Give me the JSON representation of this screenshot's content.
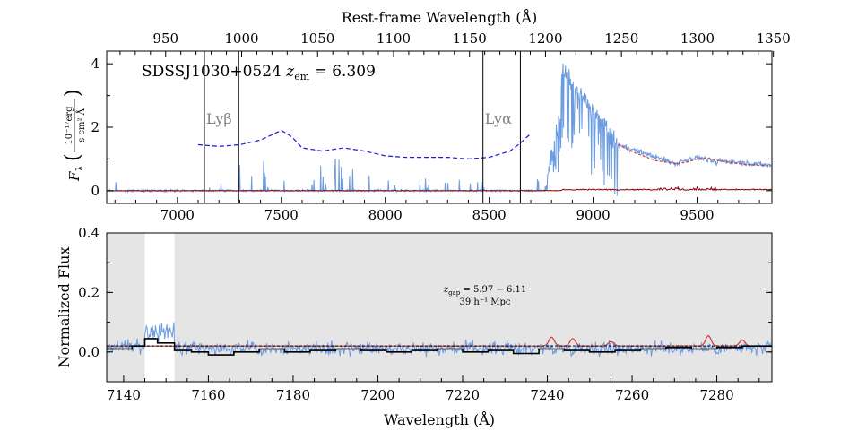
{
  "chart_data": [
    {
      "type": "line",
      "panel": "top",
      "object_label": "SDSSJ1030+0524",
      "redshift_label": "z_em = 6.309",
      "redshift_parts": {
        "z": "z",
        "sub": "em",
        "value": " = 6.309"
      },
      "ylabel": "F_λ (10⁻¹⁷erg / s cm² Å)",
      "ylabel_parts": {
        "main": "F",
        "sub": "λ",
        "num": "10⁻¹⁷erg",
        "den": "s cm² Å"
      },
      "top_axis_label": "Rest-frame Wavelength (Å)",
      "xlim": [
        6660,
        9860
      ],
      "ylim": [
        -0.4,
        4.4
      ],
      "x_ticks": [
        "7000",
        "7500",
        "8000",
        "8500",
        "9000",
        "9500"
      ],
      "y_ticks": [
        "0",
        "2",
        "4"
      ],
      "top_ticks": [
        "950",
        "1000",
        "1050",
        "1100",
        "1150",
        "1200",
        "1250",
        "1300",
        "1350"
      ],
      "redshift": 6.309,
      "line_markers": [
        {
          "label": "Lyβ",
          "x": [
            7130,
            7295
          ]
        },
        {
          "label": "Lyα",
          "x": [
            8470,
            8650
          ]
        }
      ],
      "series": [],
      "flux_color": "#6b9be0",
      "continuum_color": "#1a1adb",
      "model_color": "#cc3a3a",
      "noise_color": "#8b0000",
      "continuum_dashed": {
        "x": [
          7100,
          7200,
          7300,
          7400,
          7450,
          7500,
          7550,
          7600,
          7700,
          7800,
          7900,
          8000,
          8100,
          8200,
          8300,
          8400,
          8500,
          8600,
          8650,
          8700
        ],
        "y": [
          1.45,
          1.4,
          1.45,
          1.6,
          1.75,
          1.9,
          1.7,
          1.35,
          1.25,
          1.35,
          1.25,
          1.1,
          1.05,
          1.05,
          1.05,
          1.0,
          1.05,
          1.25,
          1.5,
          1.8
        ]
      },
      "red_model": {
        "x": [
          9120,
          9200,
          9300,
          9400,
          9450,
          9500,
          9550,
          9600,
          9700,
          9800,
          9850
        ],
        "y": [
          1.45,
          1.2,
          0.95,
          0.85,
          0.9,
          1.0,
          1.02,
          0.95,
          0.85,
          0.8,
          0.78
        ]
      }
    },
    {
      "type": "line",
      "panel": "bottom",
      "xlabel": "Wavelength (Å)",
      "ylabel": "Normalized Flux",
      "xlim": [
        7136,
        7293
      ],
      "ylim": [
        -0.1,
        0.4
      ],
      "x_ticks": [
        "7140",
        "7160",
        "7180",
        "7200",
        "7220",
        "7240",
        "7260",
        "7280"
      ],
      "y_ticks": [
        "0.0",
        "0.2",
        "0.4"
      ],
      "gap_text_line1": "z_gap = 5.97 − 6.11",
      "gap_text_parts": {
        "z": "z",
        "sub": "gap",
        "value": " = 5.97 − 6.11"
      },
      "gap_text_line2": "39 h⁻¹ Mpc",
      "shaded_regions_x": [
        [
          7136,
          7145
        ],
        [
          7152,
          7293
        ]
      ],
      "unshaded_window_x": [
        7145,
        7152
      ],
      "dashed_level": 0.02,
      "binned_step": {
        "x": [
          7136,
          7142,
          7145,
          7148,
          7152,
          7156,
          7160,
          7166,
          7172,
          7178,
          7184,
          7190,
          7196,
          7202,
          7208,
          7214,
          7220,
          7226,
          7232,
          7238,
          7244,
          7250,
          7256,
          7262,
          7268,
          7274,
          7280,
          7286,
          7293
        ],
        "y": [
          0.01,
          0.02,
          0.045,
          0.03,
          0.005,
          0.0,
          -0.01,
          0.0,
          0.01,
          0.0,
          0.005,
          0.01,
          0.005,
          0.0,
          0.005,
          0.01,
          0.0,
          0.005,
          -0.005,
          0.01,
          0.005,
          0.0,
          0.005,
          0.01,
          0.015,
          0.01,
          0.015,
          0.02,
          0.02
        ]
      },
      "red_absorber_peaks": {
        "x": [
          7241,
          7246,
          7255,
          7278,
          7286
        ],
        "y": [
          0.05,
          0.045,
          0.035,
          0.055,
          0.04
        ]
      }
    }
  ]
}
